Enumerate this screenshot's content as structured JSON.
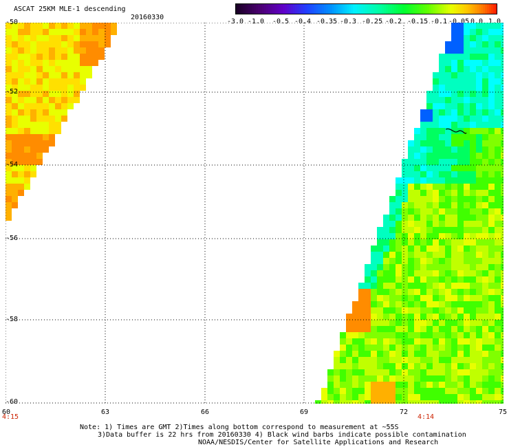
{
  "header": {
    "title": "ASCAT 25KM MLE-1 descending",
    "date": "20160330"
  },
  "colorbar": {
    "labels": [
      "-3.0",
      "-1.0",
      "-0.5",
      "-0.4",
      "-0.35",
      "-0.3",
      "-0.25",
      "-0.2",
      "-0.15",
      "-0.1",
      "-0.05",
      "0.0",
      "1.0"
    ],
    "colors": [
      "#1a0026",
      "#5a008c",
      "#3050ff",
      "#00a8ff",
      "#00ffff",
      "#00ffa0",
      "#00ff00",
      "#8cff00",
      "#ffff00",
      "#ffb400",
      "#ff6400",
      "#ff0000"
    ]
  },
  "map": {
    "lon_range": [
      60,
      75
    ],
    "lat_range": [
      -60,
      -50
    ],
    "lon_ticks": [
      "60",
      "63",
      "66",
      "69",
      "72",
      "75"
    ],
    "lat_ticks": [
      "-50",
      "-52",
      "-54",
      "-56",
      "-58",
      "-60"
    ],
    "time_labels": {
      "left": "4:15",
      "right": "4:14"
    }
  },
  "notes": {
    "line1": "Note: 1) Times are GMT 2)Times along bottom correspond to measurement at ~55S",
    "line2": "3)Data buffer is 22 hrs from 20160330 4) Black wind barbs indicate possible contamination",
    "line3": "NOAA/NESDIS/Center for Satellite Applications and Research"
  }
}
